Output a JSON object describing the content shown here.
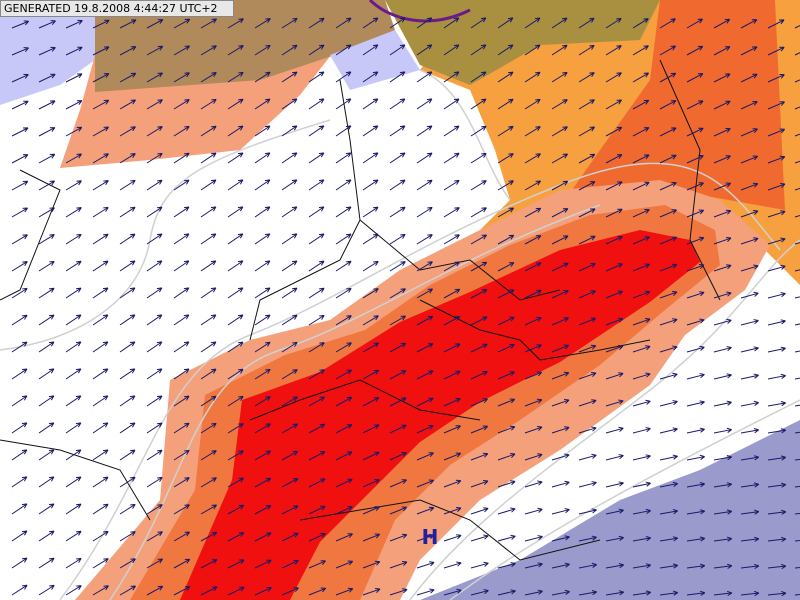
{
  "header": {
    "generated": "GENERATED 19.8.2008 4:44:27 UTC+2"
  },
  "map": {
    "pressure_labels": [
      "H"
    ]
  }
}
